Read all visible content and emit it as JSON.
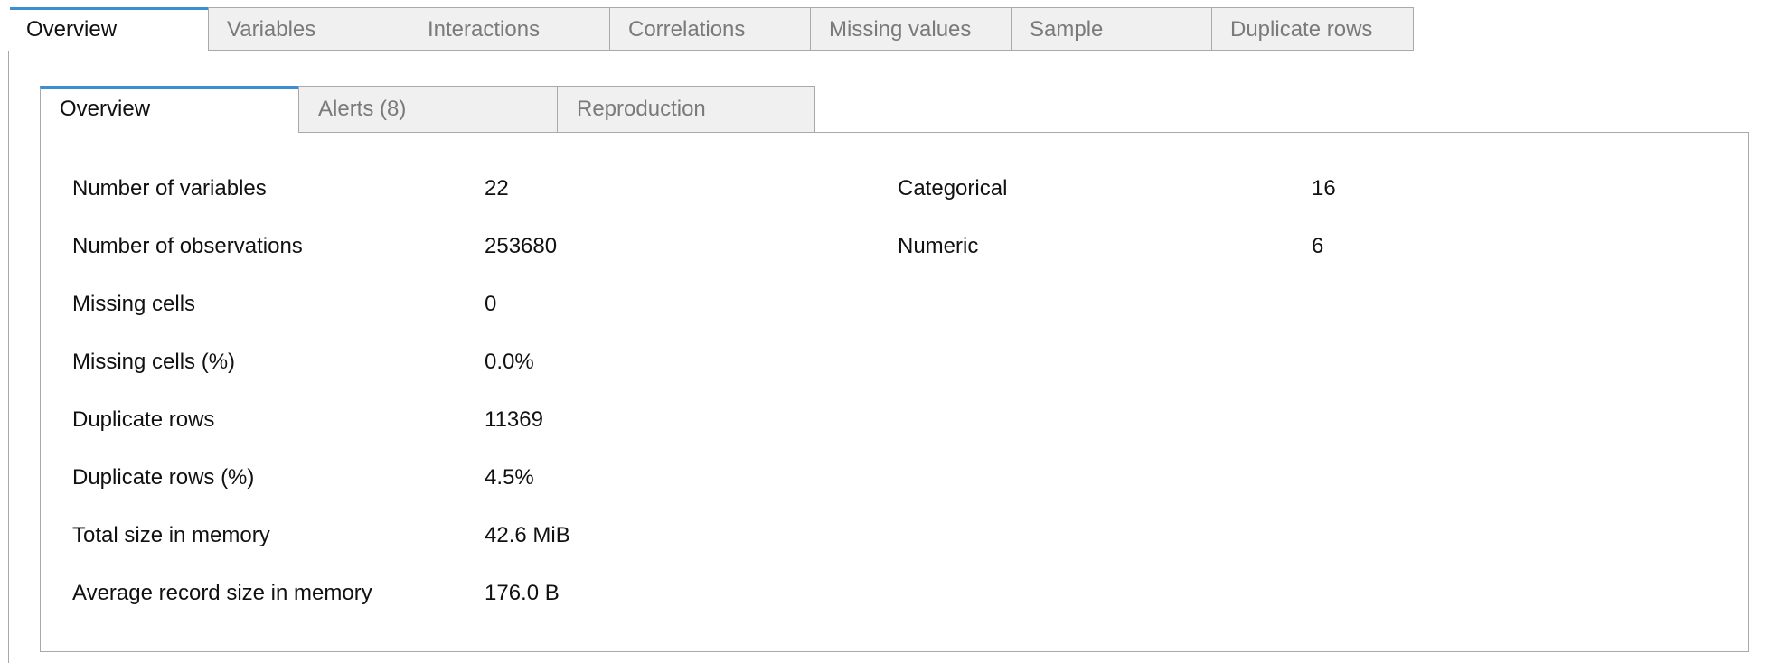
{
  "top_tabs": [
    {
      "label": "Overview",
      "active": true
    },
    {
      "label": "Variables",
      "active": false
    },
    {
      "label": "Interactions",
      "active": false
    },
    {
      "label": "Correlations",
      "active": false
    },
    {
      "label": "Missing values",
      "active": false
    },
    {
      "label": "Sample",
      "active": false
    },
    {
      "label": "Duplicate rows",
      "active": false
    }
  ],
  "inner_tabs": [
    {
      "label": "Overview",
      "active": true
    },
    {
      "label": "Alerts (8)",
      "active": false
    },
    {
      "label": "Reproduction",
      "active": false
    }
  ],
  "dataset_statistics": [
    {
      "label": "Number of variables",
      "value": "22"
    },
    {
      "label": "Number of observations",
      "value": "253680"
    },
    {
      "label": "Missing cells",
      "value": "0"
    },
    {
      "label": "Missing cells (%)",
      "value": "0.0%"
    },
    {
      "label": "Duplicate rows",
      "value": "11369"
    },
    {
      "label": "Duplicate rows (%)",
      "value": "4.5%"
    },
    {
      "label": "Total size in memory",
      "value": "42.6 MiB"
    },
    {
      "label": "Average record size in memory",
      "value": "176.0 B"
    }
  ],
  "variable_types": [
    {
      "label": "Categorical",
      "value": "16"
    },
    {
      "label": "Numeric",
      "value": "6"
    }
  ],
  "colors": {
    "accent": "#3c8dd1",
    "tab_inactive_bg": "#f0f0f0",
    "tab_inactive_text": "#7a7a7a",
    "border": "#a9a9a9"
  }
}
